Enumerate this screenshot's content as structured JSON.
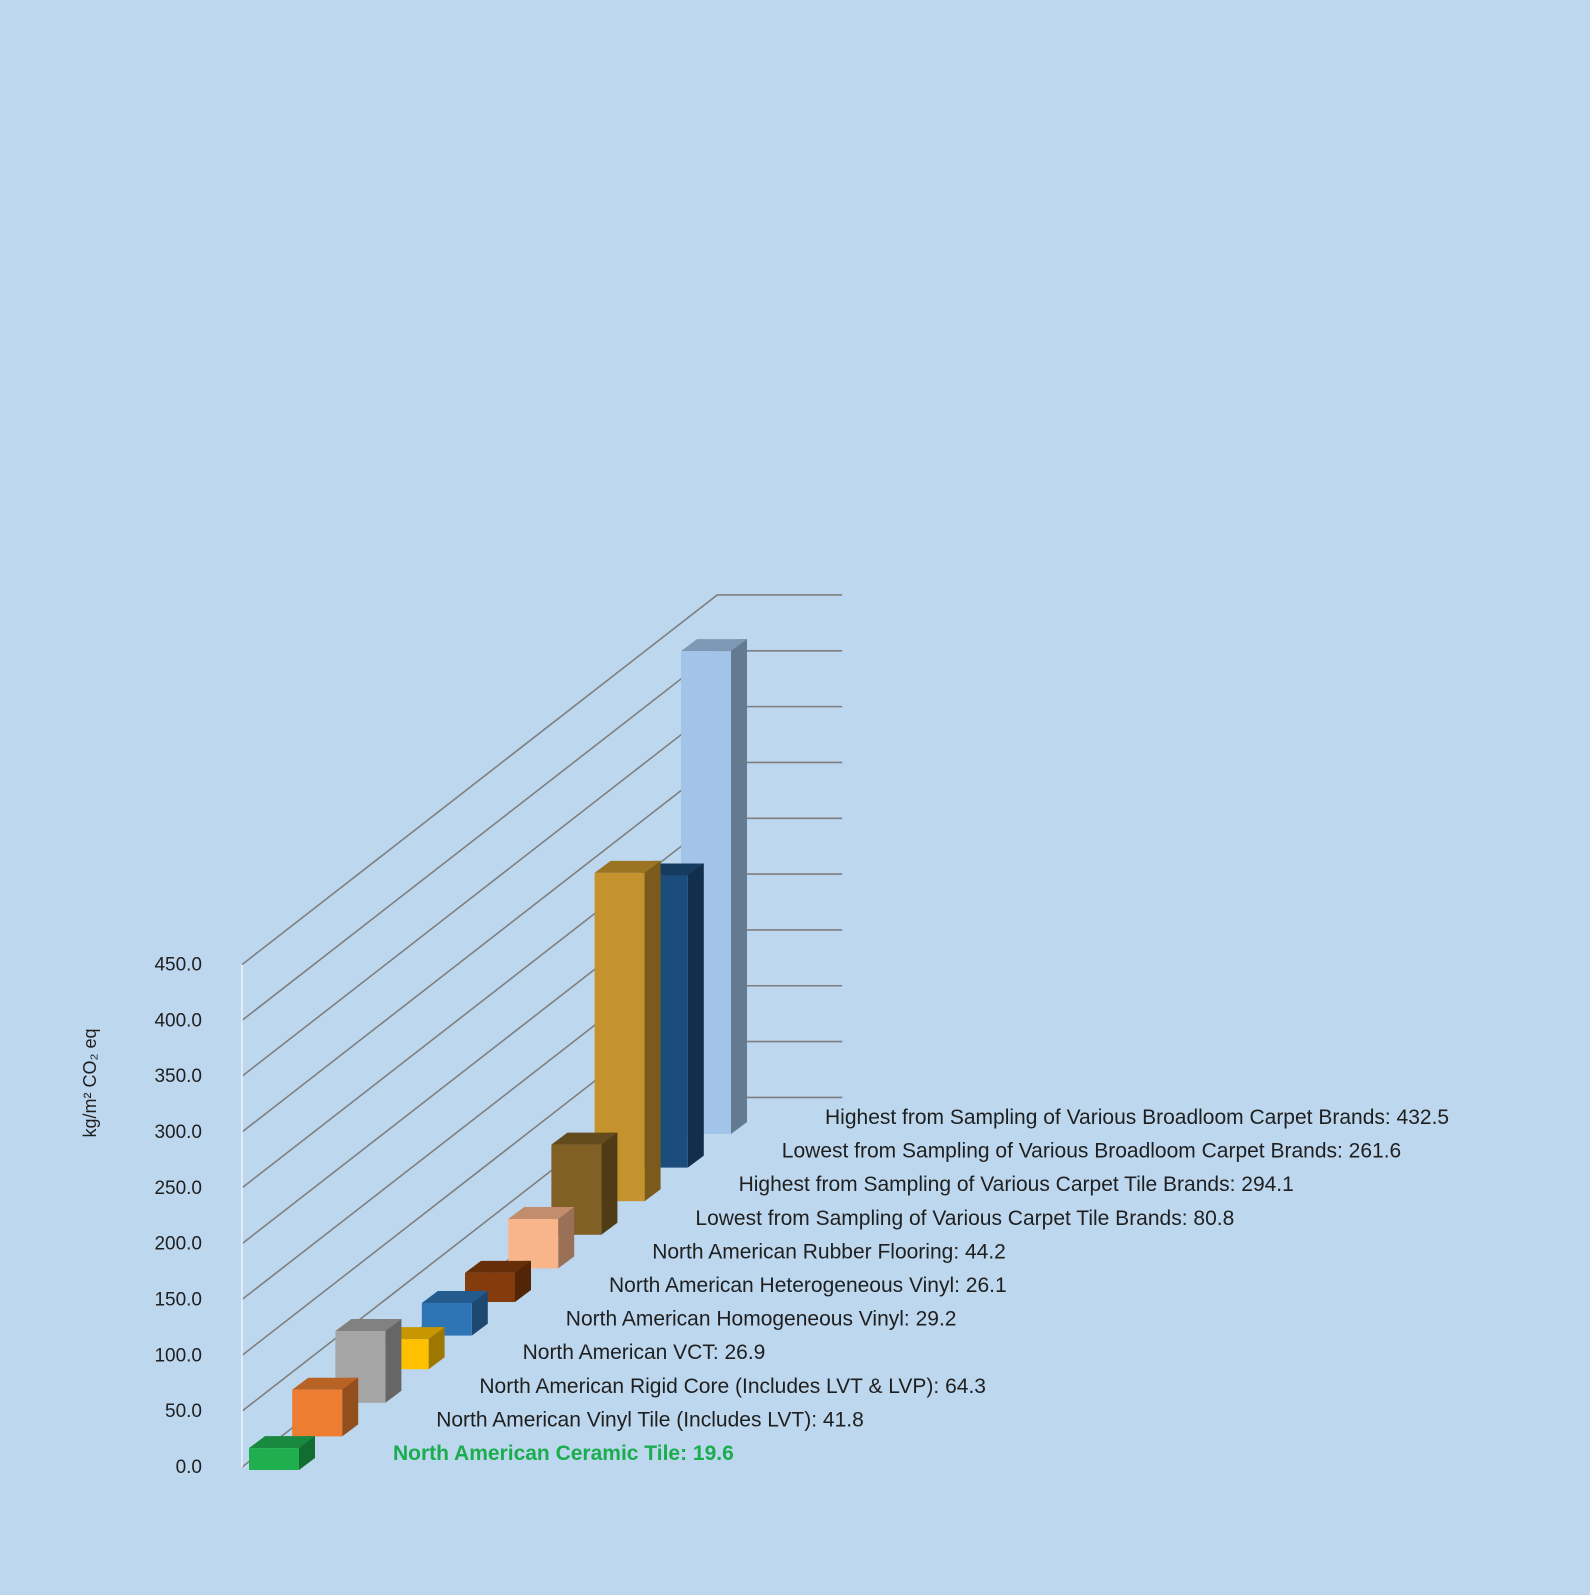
{
  "chart_data": {
    "type": "bar",
    "ylabel": "kg/m² CO₂ eq",
    "ylim": [
      0,
      450
    ],
    "ytick_step": 50,
    "yticks": [
      "0.0",
      "50.0",
      "100.0",
      "150.0",
      "200.0",
      "250.0",
      "300.0",
      "350.0",
      "400.0",
      "450.0"
    ],
    "grid": true,
    "background_color": "#bdd7ee",
    "grid_color": "#7f7f7f",
    "label_color": "#1f1f1f",
    "highlight_color": "#1aad4e",
    "series": [
      {
        "label": "North American Ceramic Tile: 19.6",
        "value": 19.6,
        "color": "#1faf4f",
        "highlight": true
      },
      {
        "label": "North American Vinyl Tile (Includes LVT): 41.8",
        "value": 41.8,
        "color": "#ed7d31"
      },
      {
        "label": "North American Rigid Core (Includes LVT & LVP): 64.3",
        "value": 64.3,
        "color": "#a5a5a5"
      },
      {
        "label": "North American VCT: 26.9",
        "value": 26.9,
        "color": "#ffc000"
      },
      {
        "label": "North American Homogeneous Vinyl: 29.2",
        "value": 29.2,
        "color": "#2e75b6"
      },
      {
        "label": "North American Heterogeneous Vinyl: 26.1",
        "value": 26.1,
        "color": "#843c0c"
      },
      {
        "label": "North American Rubber Flooring: 44.2",
        "value": 44.2,
        "color": "#f8b58a"
      },
      {
        "label": "Lowest from Sampling of Various Carpet Tile Brands: 80.8",
        "value": 80.8,
        "color": "#806025"
      },
      {
        "label": "Highest from Sampling of Various Carpet Tile Brands: 294.1",
        "value": 294.1,
        "color": "#c5932d"
      },
      {
        "label": "Lowest from Sampling of Various Broadloom Carpet Brands: 261.6",
        "value": 261.6,
        "color": "#1b4c7c"
      },
      {
        "label": "Highest from Sampling of Various Broadloom Carpet Brands: 432.5",
        "value": 432.5,
        "color": "#a2c4e8"
      }
    ]
  }
}
